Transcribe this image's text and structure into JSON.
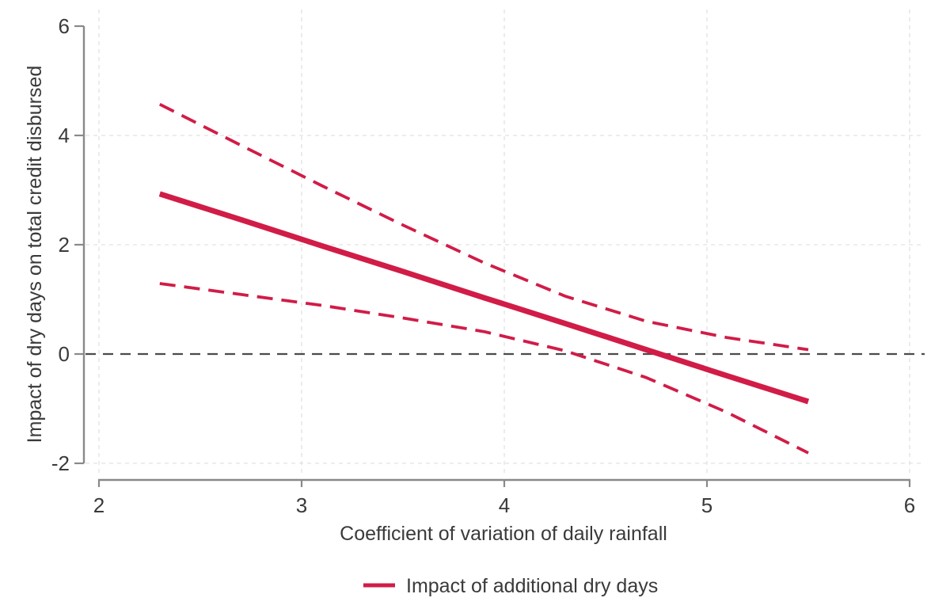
{
  "chart_data": {
    "type": "line",
    "title": "",
    "xlabel": "Coefficient of variation of daily rainfall",
    "ylabel": "Impact of dry days on total credit disbursed",
    "x_ticks": [
      2,
      3,
      4,
      5,
      6
    ],
    "y_ticks": [
      6,
      4,
      2,
      0,
      -2
    ],
    "grid_y": [
      4,
      2,
      -2
    ],
    "xlim": [
      1.93,
      6.07
    ],
    "ylim": [
      -2.17,
      6.3
    ],
    "grid": "light-dashed",
    "zero_reference_line": 0,
    "x": [
      2.3,
      2.7,
      3.1,
      3.5,
      3.9,
      4.3,
      4.7,
      5.1,
      5.5
    ],
    "series": [
      {
        "name": "Impact of additional dry days",
        "style": "solid",
        "values": [
          2.93,
          2.46,
          1.98,
          1.51,
          1.03,
          0.56,
          0.08,
          -0.4,
          -0.87
        ]
      },
      {
        "name": "Upper 95% confidence bound",
        "style": "dashed",
        "values": [
          4.57,
          3.82,
          3.08,
          2.36,
          1.67,
          1.06,
          0.6,
          0.3,
          0.08
        ]
      },
      {
        "name": "Lower 95% confidence bound",
        "style": "dashed",
        "values": [
          1.29,
          1.09,
          0.89,
          0.66,
          0.41,
          0.06,
          -0.43,
          -1.07,
          -1.81
        ]
      }
    ],
    "legend": {
      "position": "bottom-center",
      "entries": [
        {
          "label": "Impact of additional dry days",
          "swatch": "solid-line"
        }
      ]
    }
  },
  "colors": {
    "accent_red": "#d11c47",
    "text": "#3a3a3a",
    "axis": "#898989",
    "grid": "#e2e2e2",
    "zero_line": "#4b4b4b",
    "background": "#ffffff"
  }
}
